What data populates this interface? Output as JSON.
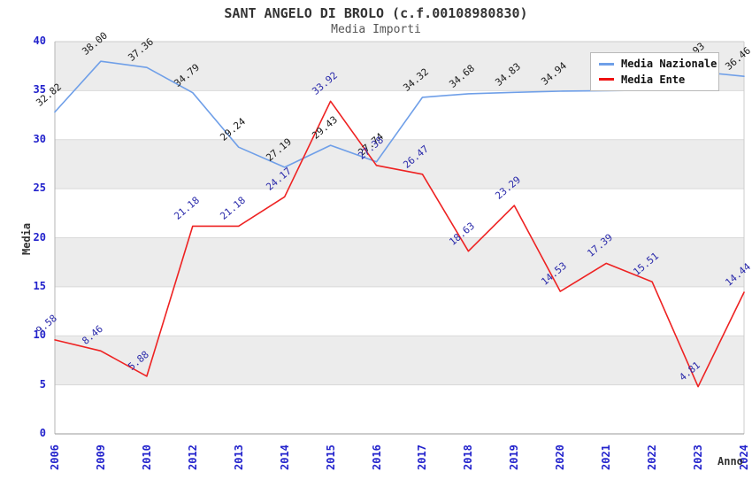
{
  "header": {
    "title": "SANT ANGELO DI BROLO (c.f.00108980830)",
    "subtitle": "Media Importi"
  },
  "axes": {
    "ylabel": "Media",
    "xlabel": "Anno",
    "yticks": [
      "0",
      "5",
      "10",
      "15",
      "20",
      "25",
      "30",
      "35",
      "40"
    ],
    "xticks": [
      "2006",
      "2009",
      "2010",
      "2012",
      "2013",
      "2014",
      "2015",
      "2016",
      "2017",
      "2018",
      "2019",
      "2020",
      "2021",
      "2022",
      "2023",
      "2024"
    ]
  },
  "legend": {
    "items": [
      {
        "label": "Media Nazionale",
        "color": "#6f9fe8"
      },
      {
        "label": "Media Ente",
        "color": "#ee1111"
      }
    ]
  },
  "colors": {
    "tick_label": "#2222cc",
    "band_gray": "#ececec",
    "band_white": "#ffffff",
    "gridline": "#d9d9d9",
    "plot_border": "#cccccc",
    "axis_left": "#b5b5b5",
    "axis_bottom": "#999999",
    "nazionale_line": "#6f9fe8",
    "ente_line": "#ee2222",
    "nazionale_label": "#1a1a1a",
    "ente_label": "#2929aa"
  },
  "chart_data": {
    "type": "line",
    "title": "SANT ANGELO DI BROLO (c.f.00108980830)",
    "subtitle": "Media Importi",
    "xlabel": "Anno",
    "ylabel": "Media",
    "ylim": [
      0,
      40
    ],
    "ytick_step": 5,
    "grid": true,
    "alternating_bands": true,
    "legend_position": "top-right",
    "categories": [
      "2006",
      "2009",
      "2010",
      "2012",
      "2013",
      "2014",
      "2015",
      "2016",
      "2017",
      "2018",
      "2019",
      "2020",
      "2021",
      "2022",
      "2023",
      "2024"
    ],
    "series": [
      {
        "name": "Media Nazionale",
        "color": "#6f9fe8",
        "label_color": "#1a1a1a",
        "values": [
          32.82,
          38.0,
          37.36,
          34.79,
          29.24,
          27.19,
          29.43,
          27.74,
          34.32,
          34.68,
          34.83,
          34.94,
          35.0,
          35.05,
          36.93,
          36.46
        ],
        "labels": [
          "32.82",
          "38.00",
          "37.36",
          "34.79",
          "29.24",
          "27.19",
          "29.43",
          "27.74",
          "34.32",
          "34.68",
          "34.83",
          "34.94",
          "",
          "",
          "36.93",
          "36.46"
        ]
      },
      {
        "name": "Media Ente",
        "color": "#ee2222",
        "label_color": "#2929aa",
        "values": [
          9.58,
          8.46,
          5.88,
          21.18,
          21.18,
          24.17,
          33.92,
          27.38,
          26.47,
          18.63,
          23.29,
          14.53,
          17.39,
          15.51,
          4.81,
          14.44
        ],
        "labels": [
          "9.58",
          "8.46",
          "5.88",
          "21.18",
          "21.18",
          "24.17",
          "33.92",
          "27.38",
          "26.47",
          "18.63",
          "23.29",
          "14.53",
          "17.39",
          "15.51",
          "4.81",
          "14.44"
        ]
      }
    ]
  }
}
